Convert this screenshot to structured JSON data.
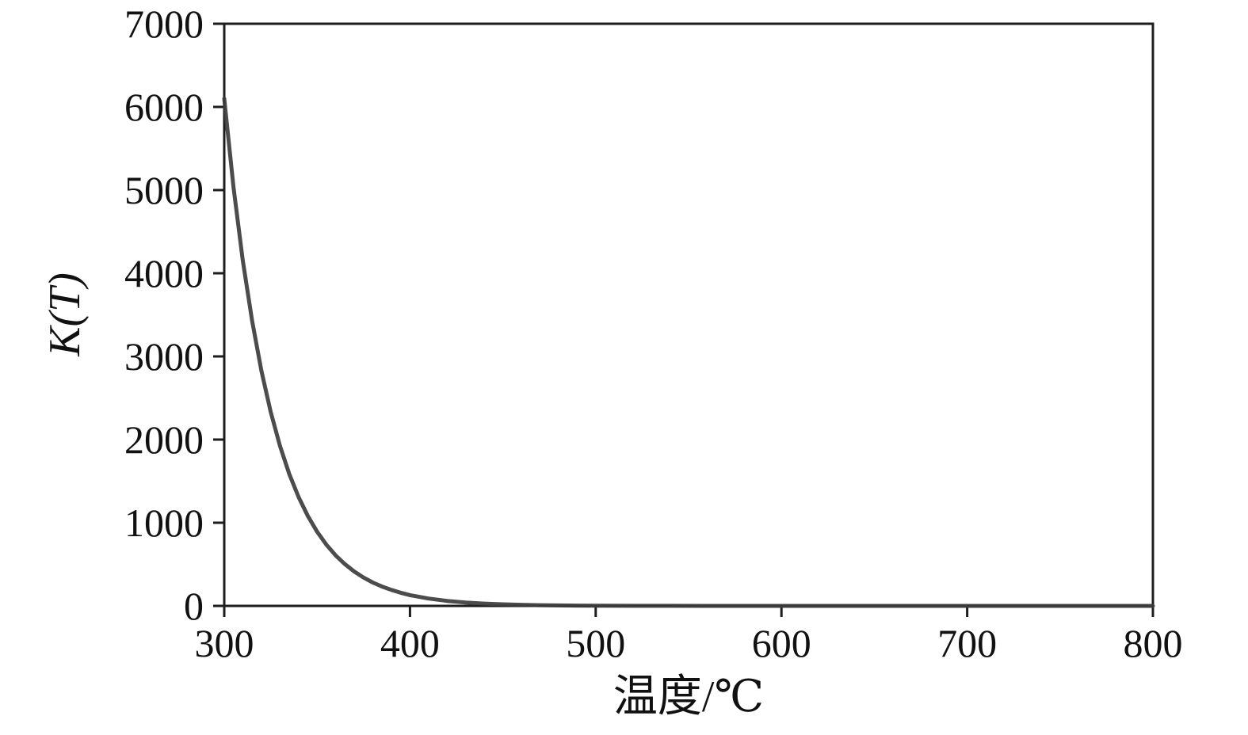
{
  "chart_data": {
    "type": "line",
    "title": "",
    "xlabel": "温度/℃",
    "ylabel": "K(T)",
    "xlim": [
      300,
      800
    ],
    "ylim": [
      0,
      7000
    ],
    "xticks": [
      300,
      400,
      500,
      600,
      700,
      800
    ],
    "yticks": [
      0,
      1000,
      2000,
      3000,
      4000,
      5000,
      6000,
      7000
    ],
    "grid": false,
    "legend": null,
    "line_color": "#3d3d3d",
    "series": [
      {
        "name": "K(T)",
        "x": [
          300,
          305,
          310,
          315,
          320,
          325,
          330,
          335,
          340,
          345,
          350,
          355,
          360,
          365,
          370,
          375,
          380,
          385,
          390,
          395,
          400,
          410,
          420,
          430,
          440,
          450,
          460,
          470,
          480,
          490,
          500,
          520,
          540,
          560,
          580,
          600,
          650,
          700,
          750,
          800
        ],
        "y": [
          6100,
          5033,
          4153,
          3427,
          2827,
          2333,
          1925,
          1588,
          1310,
          1081,
          892,
          736,
          607,
          501,
          413,
          341,
          281,
          232,
          192,
          158,
          130,
          89,
          60,
          41,
          28,
          19,
          13,
          9,
          6,
          4,
          3,
          1,
          1,
          0,
          0,
          0,
          0,
          0,
          0,
          0
        ]
      }
    ]
  }
}
